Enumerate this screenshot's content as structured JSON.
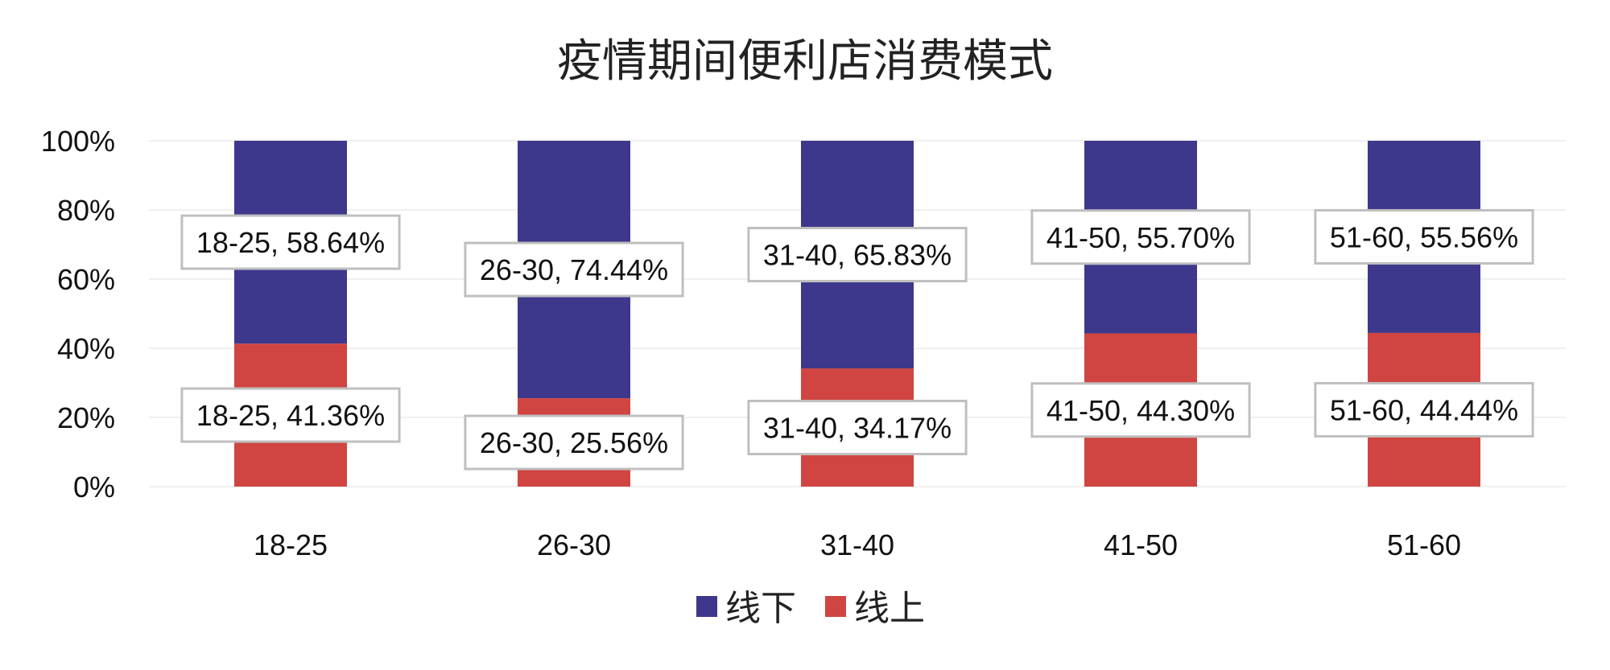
{
  "chart_data": {
    "type": "bar",
    "stacked": true,
    "title": "疫情期间便利店消费模式",
    "categories": [
      "18-25",
      "26-30",
      "31-40",
      "41-50",
      "51-60"
    ],
    "series": [
      {
        "name": "线下",
        "color": "#3D388C",
        "values": [
          58.64,
          74.44,
          65.83,
          55.7,
          55.56
        ],
        "labels": [
          "18-25, 58.64%",
          "26-30, 74.44%",
          "31-40, 65.83%",
          "41-50, 55.70%",
          "51-60, 55.56%"
        ]
      },
      {
        "name": "线上",
        "color": "#D04541",
        "values": [
          41.36,
          25.56,
          34.17,
          44.3,
          44.44
        ],
        "labels": [
          "18-25, 41.36%",
          "26-30, 25.56%",
          "31-40, 34.17%",
          "41-50, 44.30%",
          "51-60, 44.44%"
        ]
      }
    ],
    "y_ticks": [
      "0%",
      "20%",
      "40%",
      "60%",
      "80%",
      "100%"
    ],
    "ylim": [
      0,
      100
    ],
    "grid": true,
    "legend_position": "bottom"
  }
}
